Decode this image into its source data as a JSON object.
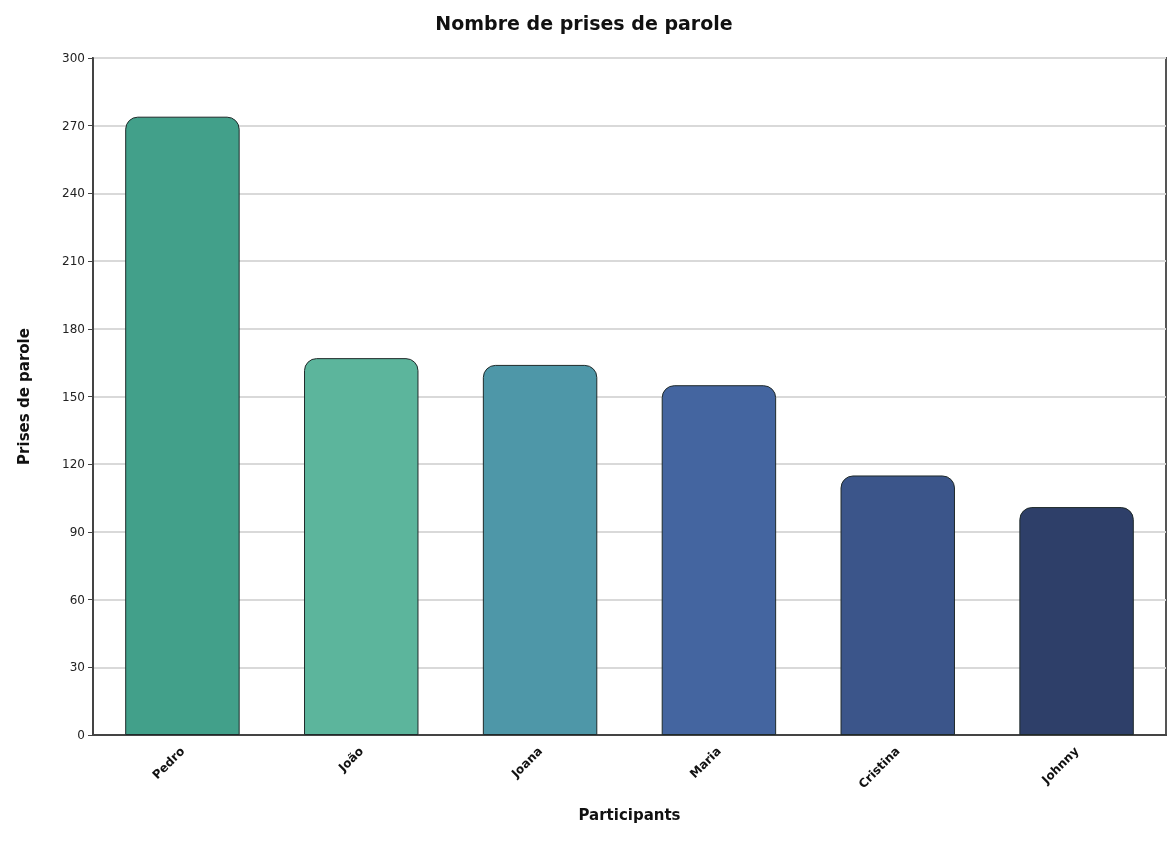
{
  "chart_data": {
    "type": "bar",
    "title": "Nombre de prises de parole",
    "xlabel": "Participants",
    "ylabel": "Prises de parole",
    "categories": [
      "Pedro",
      "João",
      "Joana",
      "Maria",
      "Cristina",
      "Johnny"
    ],
    "values": [
      274,
      167,
      164,
      155,
      115,
      101
    ],
    "colors": [
      "#42a08a",
      "#5cb59c",
      "#4e97a8",
      "#4465a0",
      "#3b558a",
      "#2e3f69"
    ],
    "ylim": [
      0,
      300
    ],
    "yticks": [
      0,
      30,
      60,
      90,
      120,
      150,
      180,
      210,
      240,
      270,
      300
    ],
    "grid": "y"
  }
}
